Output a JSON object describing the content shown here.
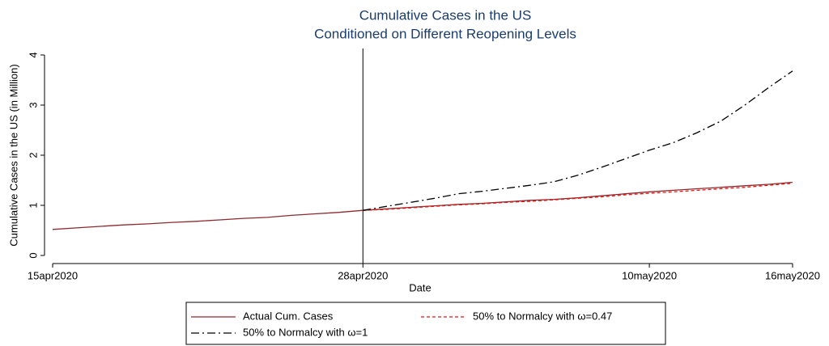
{
  "chart_data": {
    "type": "line",
    "title": "Cumulative Cases in the US",
    "subtitle": "Conditioned on Different Reopening Levels",
    "x_label": "Date",
    "y_label": "Cumulative Cases in the US (in Million)",
    "x": [
      "2020-04-15",
      "2020-04-16",
      "2020-04-17",
      "2020-04-18",
      "2020-04-19",
      "2020-04-20",
      "2020-04-21",
      "2020-04-22",
      "2020-04-23",
      "2020-04-24",
      "2020-04-25",
      "2020-04-26",
      "2020-04-27",
      "2020-04-28",
      "2020-04-29",
      "2020-04-30",
      "2020-05-01",
      "2020-05-02",
      "2020-05-03",
      "2020-05-04",
      "2020-05-05",
      "2020-05-06",
      "2020-05-07",
      "2020-05-08",
      "2020-05-09",
      "2020-05-10",
      "2020-05-11",
      "2020-05-12",
      "2020-05-13",
      "2020-05-14",
      "2020-05-15",
      "2020-05-16"
    ],
    "series": [
      {
        "name": "Actual Cum. Cases",
        "color": "#8c2a2f",
        "dash": "none",
        "values": [
          0.52,
          0.55,
          0.58,
          0.61,
          0.63,
          0.66,
          0.68,
          0.71,
          0.74,
          0.76,
          0.8,
          0.83,
          0.86,
          0.9,
          0.93,
          0.96,
          0.99,
          1.02,
          1.04,
          1.07,
          1.1,
          1.12,
          1.15,
          1.19,
          1.23,
          1.27,
          1.3,
          1.33,
          1.36,
          1.39,
          1.42,
          1.46
        ]
      },
      {
        "name": "50% to Normalcy with ω=0.47",
        "color": "#e8150f",
        "dash": "4 3",
        "values": [
          null,
          null,
          null,
          null,
          null,
          null,
          null,
          null,
          null,
          null,
          null,
          null,
          null,
          0.9,
          0.92,
          0.95,
          0.98,
          1.01,
          1.03,
          1.06,
          1.08,
          1.11,
          1.14,
          1.17,
          1.21,
          1.24,
          1.27,
          1.3,
          1.33,
          1.36,
          1.4,
          1.44
        ]
      },
      {
        "name": "50% to Normalcy with ω=1",
        "color": "#000000",
        "dash": "10 4 2 4",
        "values": [
          null,
          null,
          null,
          null,
          null,
          null,
          null,
          null,
          null,
          null,
          null,
          null,
          null,
          0.9,
          0.98,
          1.06,
          1.14,
          1.23,
          1.28,
          1.34,
          1.4,
          1.47,
          1.6,
          1.76,
          1.93,
          2.1,
          2.25,
          2.45,
          2.68,
          3.0,
          3.35,
          3.68
        ]
      }
    ],
    "xlim": [
      "2020-04-15",
      "2020-05-16"
    ],
    "xticks": [
      {
        "value": "2020-04-15",
        "label": "15apr2020"
      },
      {
        "value": "2020-04-28",
        "label": "28apr2020"
      },
      {
        "value": "2020-05-10",
        "label": "10may2020"
      },
      {
        "value": "2020-05-16",
        "label": "16may2020"
      }
    ],
    "ylim": [
      0,
      4
    ],
    "yticks": [
      0,
      1,
      2,
      3,
      4
    ],
    "vline": "2020-04-28",
    "grid": false,
    "legend": "bottom"
  }
}
